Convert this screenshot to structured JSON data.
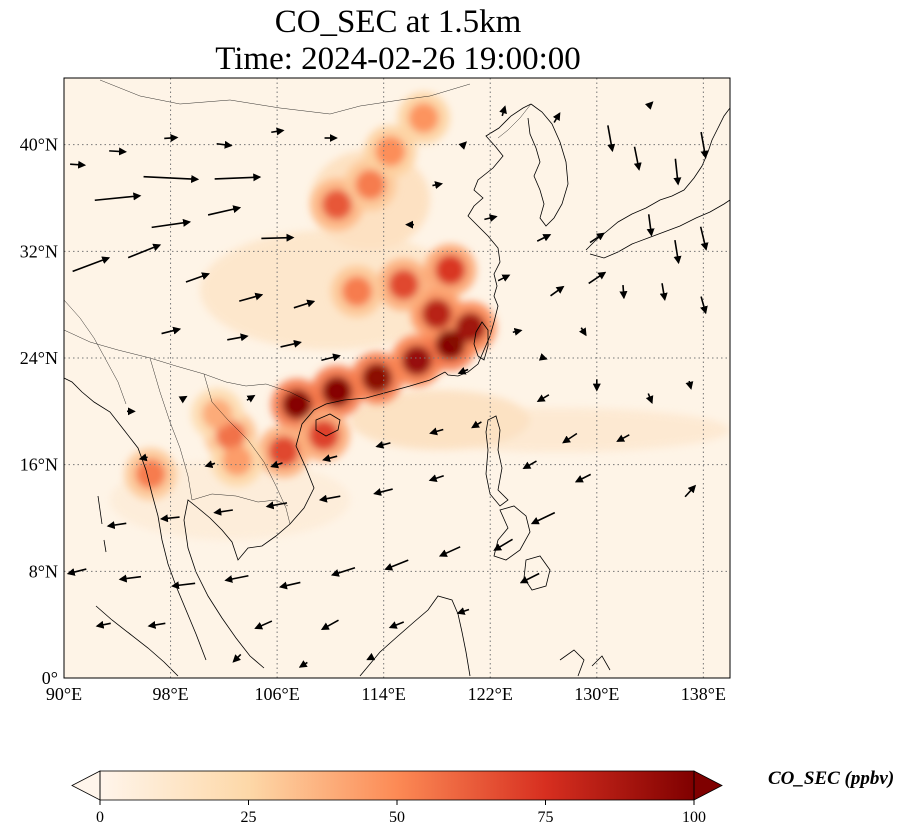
{
  "title": {
    "line1": "CO_SEC at 1.5km",
    "line2": "Time: 2024-02-26 19:00:00"
  },
  "map": {
    "lon_range": [
      90,
      140
    ],
    "lat_range": [
      0,
      45
    ],
    "lon_ticks": [
      {
        "value": 90,
        "label": "90°E"
      },
      {
        "value": 98,
        "label": "98°E"
      },
      {
        "value": 106,
        "label": "106°E"
      },
      {
        "value": 114,
        "label": "114°E"
      },
      {
        "value": 122,
        "label": "122°E"
      },
      {
        "value": 130,
        "label": "130°E"
      },
      {
        "value": 138,
        "label": "138°E"
      }
    ],
    "lat_ticks": [
      {
        "value": 0,
        "label": "0°"
      },
      {
        "value": 8,
        "label": "8°N"
      },
      {
        "value": 16,
        "label": "16°N"
      },
      {
        "value": 24,
        "label": "24°N"
      },
      {
        "value": 32,
        "label": "32°N"
      },
      {
        "value": 40,
        "label": "40°N"
      }
    ],
    "gridlines": "dotted"
  },
  "colorbar": {
    "label": "CO_SEC (ppbv)",
    "min": 0,
    "max": 100,
    "ticks": [
      {
        "value": 0,
        "label": "0"
      },
      {
        "value": 25,
        "label": "25"
      },
      {
        "value": 50,
        "label": "50"
      },
      {
        "value": 75,
        "label": "75"
      },
      {
        "value": 100,
        "label": "100"
      }
    ],
    "colors": [
      "#fff5eb",
      "#fdd8a8",
      "#fc8a55",
      "#d72f20",
      "#7f0000"
    ],
    "extend": "both"
  },
  "plume_cores": [
    {
      "lon": 107.5,
      "lat": 20.5,
      "value": 100
    },
    {
      "lon": 110.5,
      "lat": 21.5,
      "value": 100
    },
    {
      "lon": 113.5,
      "lat": 22.5,
      "value": 98
    },
    {
      "lon": 116.5,
      "lat": 23.8,
      "value": 95
    },
    {
      "lon": 119,
      "lat": 25,
      "value": 100
    },
    {
      "lon": 120.5,
      "lat": 26.3,
      "value": 92
    },
    {
      "lon": 118,
      "lat": 27.3,
      "value": 85
    },
    {
      "lon": 115.5,
      "lat": 29.5,
      "value": 70
    },
    {
      "lon": 119,
      "lat": 30.6,
      "value": 75
    },
    {
      "lon": 112,
      "lat": 29,
      "value": 55
    },
    {
      "lon": 110.5,
      "lat": 35.5,
      "value": 65
    },
    {
      "lon": 113,
      "lat": 37,
      "value": 55
    },
    {
      "lon": 114.5,
      "lat": 39.5,
      "value": 50
    },
    {
      "lon": 117,
      "lat": 42,
      "value": 48
    },
    {
      "lon": 109.5,
      "lat": 18.2,
      "value": 72
    },
    {
      "lon": 106.5,
      "lat": 17,
      "value": 70
    },
    {
      "lon": 102.5,
      "lat": 18.2,
      "value": 58
    },
    {
      "lon": 96.5,
      "lat": 15.3,
      "value": 55
    },
    {
      "lon": 103,
      "lat": 16.3,
      "value": 45
    },
    {
      "lon": 101.5,
      "lat": 19.8,
      "value": 40
    }
  ],
  "wind_vectors": [
    {
      "lon": 91,
      "lat": 38.5,
      "u": 1.6,
      "v": -0.1
    },
    {
      "lon": 94,
      "lat": 39.5,
      "u": 1.8,
      "v": -0.1
    },
    {
      "lon": 98,
      "lat": 40.5,
      "u": 1.4,
      "v": 0.1
    },
    {
      "lon": 102,
      "lat": 40,
      "u": 1.6,
      "v": -0.2
    },
    {
      "lon": 106,
      "lat": 41,
      "u": 1.3,
      "v": 0.2
    },
    {
      "lon": 110,
      "lat": 40.5,
      "u": 1.3,
      "v": 0
    },
    {
      "lon": 94,
      "lat": 36,
      "u": 5,
      "v": 0.5
    },
    {
      "lon": 98,
      "lat": 37.5,
      "u": 6,
      "v": -0.3
    },
    {
      "lon": 103,
      "lat": 37.5,
      "u": 5,
      "v": 0.2
    },
    {
      "lon": 98,
      "lat": 34,
      "u": 4.2,
      "v": 0.6
    },
    {
      "lon": 102,
      "lat": 35,
      "u": 3.5,
      "v": 0.8
    },
    {
      "lon": 106,
      "lat": 33,
      "u": 3.5,
      "v": 0.1
    },
    {
      "lon": 92,
      "lat": 31,
      "u": 4,
      "v": 1.5
    },
    {
      "lon": 96,
      "lat": 32,
      "u": 3.5,
      "v": 1.4
    },
    {
      "lon": 100,
      "lat": 30,
      "u": 2.5,
      "v": 0.9
    },
    {
      "lon": 104,
      "lat": 28.5,
      "u": 2.5,
      "v": 0.7
    },
    {
      "lon": 108,
      "lat": 28,
      "u": 2.2,
      "v": 0.7
    },
    {
      "lon": 98,
      "lat": 26,
      "u": 2,
      "v": 0.5
    },
    {
      "lon": 103,
      "lat": 25.5,
      "u": 2.2,
      "v": 0.4
    },
    {
      "lon": 107,
      "lat": 25,
      "u": 2.2,
      "v": 0.5
    },
    {
      "lon": 110,
      "lat": 24,
      "u": 2,
      "v": 0.5
    },
    {
      "lon": 116,
      "lat": 34,
      "u": -0.8,
      "v": 0
    },
    {
      "lon": 118,
      "lat": 37,
      "u": 1,
      "v": 0.2
    },
    {
      "lon": 122,
      "lat": 34.5,
      "u": 1.3,
      "v": 0.3
    },
    {
      "lon": 126,
      "lat": 33,
      "u": 1.4,
      "v": 0.7
    },
    {
      "lon": 130,
      "lat": 33,
      "u": 1.5,
      "v": 1
    },
    {
      "lon": 123,
      "lat": 30,
      "u": 1.2,
      "v": 0.6
    },
    {
      "lon": 127,
      "lat": 29,
      "u": 1.4,
      "v": 1
    },
    {
      "lon": 130,
      "lat": 30,
      "u": 1.8,
      "v": 1.2
    },
    {
      "lon": 124,
      "lat": 26,
      "u": 0.9,
      "v": 0.2
    },
    {
      "lon": 129,
      "lat": 26,
      "u": 0.5,
      "v": -0.8
    },
    {
      "lon": 132,
      "lat": 29,
      "u": 0.1,
      "v": -1.4
    },
    {
      "lon": 131,
      "lat": 40.5,
      "u": 0.5,
      "v": -2.8
    },
    {
      "lon": 133,
      "lat": 39,
      "u": 0.5,
      "v": -2.5
    },
    {
      "lon": 136,
      "lat": 38,
      "u": 0.3,
      "v": -2.8
    },
    {
      "lon": 138,
      "lat": 40,
      "u": 0.5,
      "v": -2.8
    },
    {
      "lon": 134,
      "lat": 34,
      "u": 0.3,
      "v": -2.3
    },
    {
      "lon": 136,
      "lat": 32,
      "u": 0.4,
      "v": -2.5
    },
    {
      "lon": 138,
      "lat": 33,
      "u": 0.6,
      "v": -2.5
    },
    {
      "lon": 135,
      "lat": 29,
      "u": 0.3,
      "v": -1.8
    },
    {
      "lon": 138,
      "lat": 28,
      "u": 0.5,
      "v": -1.8
    },
    {
      "lon": 130,
      "lat": 22,
      "u": 0,
      "v": -1.2
    },
    {
      "lon": 134,
      "lat": 21,
      "u": 0.4,
      "v": -1
    },
    {
      "lon": 137,
      "lat": 22,
      "u": 0.2,
      "v": -0.8
    },
    {
      "lon": 126,
      "lat": 21,
      "u": -1.2,
      "v": -0.7
    },
    {
      "lon": 128,
      "lat": 18,
      "u": -1.5,
      "v": -1
    },
    {
      "lon": 132,
      "lat": 18,
      "u": -1.3,
      "v": -0.7
    },
    {
      "lon": 125,
      "lat": 16,
      "u": -1.4,
      "v": -0.8
    },
    {
      "lon": 129,
      "lat": 15,
      "u": -1.6,
      "v": -0.8
    },
    {
      "lon": 137,
      "lat": 14,
      "u": 1.1,
      "v": 1.2
    },
    {
      "lon": 121,
      "lat": 19,
      "u": -1,
      "v": -0.6
    },
    {
      "lon": 118,
      "lat": 15,
      "u": -1.5,
      "v": -0.5
    },
    {
      "lon": 114,
      "lat": 14,
      "u": -2,
      "v": -0.5
    },
    {
      "lon": 110,
      "lat": 13.5,
      "u": -2.2,
      "v": -0.4
    },
    {
      "lon": 106,
      "lat": 13,
      "u": -2.2,
      "v": -0.4
    },
    {
      "lon": 102,
      "lat": 12.5,
      "u": -2,
      "v": -0.3
    },
    {
      "lon": 98,
      "lat": 12,
      "u": -2,
      "v": -0.2
    },
    {
      "lon": 94,
      "lat": 11.5,
      "u": -2,
      "v": -0.3
    },
    {
      "lon": 91,
      "lat": 8,
      "u": -2,
      "v": -0.5
    },
    {
      "lon": 95,
      "lat": 7.5,
      "u": -2.3,
      "v": -0.3
    },
    {
      "lon": 99,
      "lat": 7,
      "u": -2.5,
      "v": -0.3
    },
    {
      "lon": 103,
      "lat": 7.5,
      "u": -2.5,
      "v": -0.5
    },
    {
      "lon": 107,
      "lat": 7,
      "u": -2.2,
      "v": -0.5
    },
    {
      "lon": 111,
      "lat": 8,
      "u": -2.5,
      "v": -0.8
    },
    {
      "lon": 115,
      "lat": 8.5,
      "u": -2.5,
      "v": -1
    },
    {
      "lon": 119,
      "lat": 9.5,
      "u": -2.2,
      "v": -1
    },
    {
      "lon": 123,
      "lat": 10,
      "u": -2,
      "v": -1.2
    },
    {
      "lon": 126,
      "lat": 12,
      "u": -2.5,
      "v": -1.2
    },
    {
      "lon": 125,
      "lat": 7.5,
      "u": -2,
      "v": -1
    },
    {
      "lon": 93,
      "lat": 4,
      "u": -1.5,
      "v": -0.3
    },
    {
      "lon": 97,
      "lat": 4,
      "u": -1.8,
      "v": -0.3
    },
    {
      "lon": 105,
      "lat": 4,
      "u": -1.8,
      "v": -0.8
    },
    {
      "lon": 110,
      "lat": 4,
      "u": -1.8,
      "v": -1
    },
    {
      "lon": 115,
      "lat": 4,
      "u": -1.5,
      "v": -0.6
    },
    {
      "lon": 120,
      "lat": 5,
      "u": -1.2,
      "v": -0.4
    },
    {
      "lon": 103,
      "lat": 1.5,
      "u": -0.8,
      "v": -0.8
    },
    {
      "lon": 108,
      "lat": 1,
      "u": -0.8,
      "v": -0.5
    },
    {
      "lon": 113,
      "lat": 1.5,
      "u": -0.6,
      "v": -0.3
    },
    {
      "lon": 95,
      "lat": 20,
      "u": 0.8,
      "v": 0
    },
    {
      "lon": 99,
      "lat": 21,
      "u": 0.5,
      "v": 0.3
    },
    {
      "lon": 104,
      "lat": 21,
      "u": 0.8,
      "v": 0.5
    },
    {
      "lon": 96,
      "lat": 16.5,
      "u": -0.8,
      "v": -0.2
    },
    {
      "lon": 101,
      "lat": 16,
      "u": -1,
      "v": -0.3
    },
    {
      "lon": 106,
      "lat": 16,
      "u": -1.2,
      "v": -0.4
    },
    {
      "lon": 110,
      "lat": 16.5,
      "u": -1.5,
      "v": -0.4
    },
    {
      "lon": 114,
      "lat": 17.5,
      "u": -1.5,
      "v": -0.4
    },
    {
      "lon": 118,
      "lat": 18.5,
      "u": -1.4,
      "v": -0.4
    },
    {
      "lon": 120,
      "lat": 23,
      "u": -1,
      "v": -0.4
    },
    {
      "lon": 126,
      "lat": 24,
      "u": 0.6,
      "v": -0.2
    },
    {
      "lon": 123,
      "lat": 42.5,
      "u": 0.3,
      "v": 1
    },
    {
      "lon": 127,
      "lat": 42,
      "u": 0.6,
      "v": 1
    },
    {
      "lon": 134,
      "lat": 43,
      "u": 0.5,
      "v": 0.5
    },
    {
      "lon": 120,
      "lat": 40,
      "u": 0.5,
      "v": 0.5
    }
  ]
}
